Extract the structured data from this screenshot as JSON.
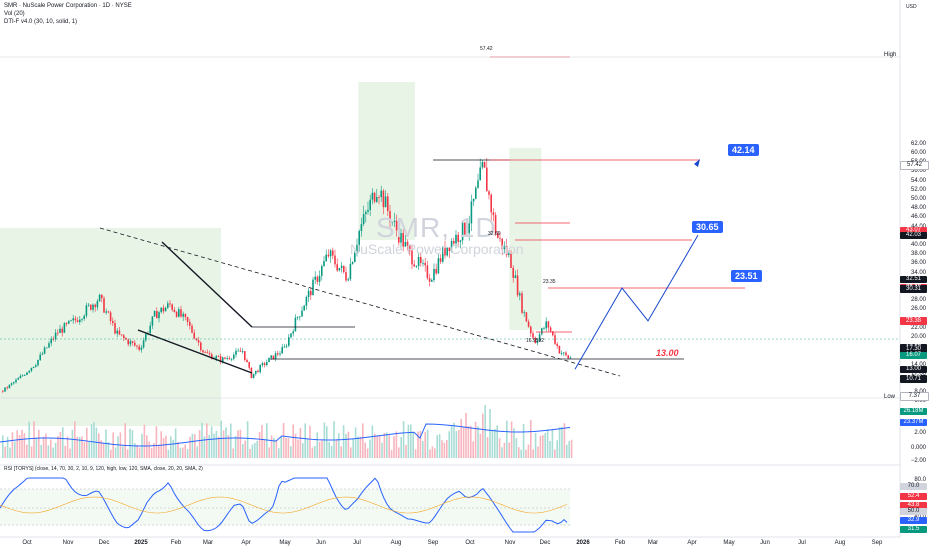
{
  "header": {
    "line1": "SMR · NuScale Power Corporation · 1D · NYSE",
    "line2": "Vol (20)",
    "line3": "DTI-F v4.0 (30, 10, solid, 1)"
  },
  "watermark": {
    "ticker": "SMR, 1D",
    "name": "NuScale Power Corporation"
  },
  "currency": "USD",
  "price_axis": [
    "62.00",
    "60.00",
    "58.00",
    "56.00",
    "54.00",
    "52.00",
    "50.00",
    "48.00",
    "46.00",
    "44.00",
    "40.00",
    "38.00",
    "36.00",
    "34.00",
    "28.00",
    "26.00",
    "22.00",
    "20.00",
    "14.00",
    "12.00",
    "8.00",
    "6.00"
  ],
  "price_boxes": [
    {
      "label": "57.42",
      "color": "#ffffff",
      "text": "#131722"
    },
    {
      "label": "43.07",
      "color": "#f23645",
      "text": "#ffffff"
    },
    {
      "label": "42.03",
      "color": "#131722",
      "text": "#ffffff"
    },
    {
      "label": "32.51",
      "color": "#131722",
      "text": "#ffffff"
    },
    {
      "label": "30.66",
      "color": "#f23645",
      "text": "#ffffff"
    },
    {
      "label": "30.52",
      "color": "#f23645",
      "text": "#ffffff"
    },
    {
      "label": "30.47",
      "color": "#131722",
      "text": "#ffffff"
    },
    {
      "label": "30.46",
      "color": "#131722",
      "text": "#ffffff"
    },
    {
      "label": "30.31",
      "color": "#131722",
      "text": "#ffffff"
    },
    {
      "label": "23.51",
      "color": "#f23645",
      "text": "#ffffff"
    },
    {
      "label": "23.38",
      "color": "#f23645",
      "text": "#ffffff"
    },
    {
      "label": "17.68",
      "color": "#131722",
      "text": "#ffffff"
    },
    {
      "label": "17.57",
      "color": "#131722",
      "text": "#ffffff"
    },
    {
      "label": "17.38",
      "color": "#131722",
      "text": "#ffffff"
    },
    {
      "label": "17.30",
      "color": "#131722",
      "text": "#ffffff"
    },
    {
      "label": "16.07",
      "color": "#089981",
      "text": "#ffffff"
    },
    {
      "label": "13.00",
      "color": "#131722",
      "text": "#ffffff"
    },
    {
      "label": "10.99",
      "color": "#131722",
      "text": "#ffffff"
    },
    {
      "label": "10.71",
      "color": "#131722",
      "text": "#ffffff"
    },
    {
      "label": "7.37",
      "color": "#ffffff",
      "text": "#131722"
    }
  ],
  "hl_labels": {
    "high": "High",
    "low": "Low"
  },
  "volume_axis": [
    "2.00",
    "0.000",
    "−2.00"
  ],
  "volume_boxes": [
    {
      "label": "26.18M",
      "color": "#089981"
    },
    {
      "label": "23.37M",
      "color": "#2962ff"
    }
  ],
  "rsi_header": "RSI [TORYS] (close, 14, 70, 30, 2, 10, 9, 120, high, low, 120, SMA, close, 20, 20, SMA, 2)",
  "rsi_axis": [
    "80.0",
    "60.0",
    "40.0",
    "20.0"
  ],
  "rsi_boxes": [
    {
      "label": "70.0",
      "color": "#d1d4dc",
      "text": "#131722"
    },
    {
      "label": "52.4",
      "color": "#f23645",
      "text": "#ffffff"
    },
    {
      "label": "43.8",
      "color": "#f23645",
      "text": "#ffffff"
    },
    {
      "label": "50.0",
      "color": "#d1d4dc",
      "text": "#131722"
    },
    {
      "label": "32.9",
      "color": "#2962ff",
      "text": "#ffffff"
    },
    {
      "label": "31.5",
      "color": "#089981",
      "text": "#ffffff"
    }
  ],
  "x_axis": [
    "Oct",
    "Nov",
    "Dec",
    "2025",
    "Feb",
    "Mar",
    "Apr",
    "May",
    "Jun",
    "Jul",
    "Aug",
    "Sep",
    "Oct",
    "Nov",
    "Dec",
    "2026",
    "Feb",
    "Mar",
    "Apr",
    "May",
    "Jun",
    "Jul",
    "Aug",
    "Sep"
  ],
  "annotations": {
    "high_label": "57.42",
    "mid_label": "32.69",
    "mid2_label": "23.35",
    "low_label": "16.9592",
    "target1": "42.14",
    "target2": "30.65",
    "target3": "23.51",
    "support": "13.00"
  },
  "colors": {
    "up": "#089981",
    "down": "#f23645",
    "accent": "#2962ff",
    "zone": "#d8ecd6"
  },
  "chart_data": {
    "type": "line",
    "title": "SMR · NuScale Power Corporation · 1D · NYSE",
    "x_start": "2024-09-16",
    "x_end": "2025-12-26",
    "ylim": [
      6,
      62
    ],
    "price_path": [
      [
        "2024-09-16",
        8.0
      ],
      [
        "2024-10-01",
        11.0
      ],
      [
        "2024-10-15",
        14.5
      ],
      [
        "2024-11-01",
        21.0
      ],
      [
        "2024-11-15",
        23.5
      ],
      [
        "2024-12-05",
        28.5
      ],
      [
        "2024-12-20",
        20.5
      ],
      [
        "2025-01-07",
        17.5
      ],
      [
        "2025-01-20",
        25.0
      ],
      [
        "2025-02-01",
        27.0
      ],
      [
        "2025-02-15",
        23.0
      ],
      [
        "2025-03-01",
        16.5
      ],
      [
        "2025-03-15",
        15.0
      ],
      [
        "2025-04-01",
        17.0
      ],
      [
        "2025-04-08",
        11.5
      ],
      [
        "2025-04-20",
        14.5
      ],
      [
        "2025-05-05",
        17.5
      ],
      [
        "2025-05-15",
        24.0
      ],
      [
        "2025-05-30",
        32.0
      ],
      [
        "2025-06-10",
        38.0
      ],
      [
        "2025-06-25",
        33.0
      ],
      [
        "2025-07-05",
        43.0
      ],
      [
        "2025-07-20",
        53.0
      ],
      [
        "2025-08-01",
        45.0
      ],
      [
        "2025-08-15",
        38.0
      ],
      [
        "2025-09-01",
        33.0
      ],
      [
        "2025-09-15",
        40.0
      ],
      [
        "2025-10-01",
        44.0
      ],
      [
        "2025-10-14",
        57.0
      ],
      [
        "2025-10-25",
        42.0
      ],
      [
        "2025-11-05",
        37.0
      ],
      [
        "2025-11-15",
        26.0
      ],
      [
        "2025-11-25",
        19.0
      ],
      [
        "2025-12-05",
        23.0
      ],
      [
        "2025-12-15",
        17.0
      ],
      [
        "2025-12-22",
        15.5
      ]
    ],
    "projection": [
      [
        "2025-12-22",
        13.0
      ],
      [
        "2026-01-15",
        30.65
      ],
      [
        "2026-02-05",
        23.51
      ],
      [
        "2026-03-05",
        42.14
      ]
    ],
    "levels": [
      57.42,
      42.14,
      32.69,
      30.65,
      23.51,
      23.35,
      16.9592,
      13.0
    ],
    "rsi": {
      "overbought": 70,
      "oversold": 30,
      "last": 31.5
    }
  }
}
